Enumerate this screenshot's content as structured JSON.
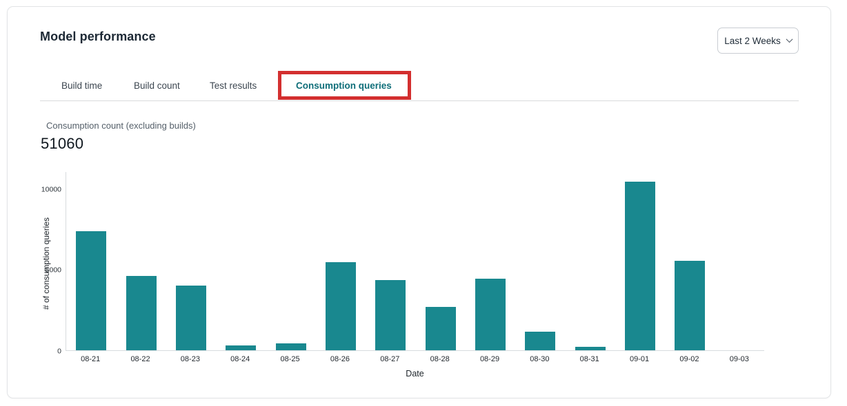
{
  "card": {
    "title": "Model performance",
    "range_selector": {
      "label": "Last 2 Weeks"
    }
  },
  "tabs": [
    {
      "label": "Build time",
      "active": false
    },
    {
      "label": "Build count",
      "active": false
    },
    {
      "label": "Test results",
      "active": false
    },
    {
      "label": "Consumption queries",
      "active": true,
      "annotated": true
    }
  ],
  "metric": {
    "label": "Consumption count (excluding builds)",
    "value": "51060"
  },
  "chart_data": {
    "type": "bar",
    "title": "",
    "xlabel": "Date",
    "ylabel": "# of consumption queries",
    "categories": [
      "08-21",
      "08-22",
      "08-23",
      "08-24",
      "08-25",
      "08-26",
      "08-27",
      "08-28",
      "08-29",
      "08-30",
      "08-31",
      "09-01",
      "09-02",
      "09-03"
    ],
    "values": [
      7400,
      4600,
      4010,
      310,
      430,
      5480,
      4350,
      2700,
      4450,
      1150,
      200,
      10450,
      5530,
      0
    ],
    "yticks": [
      0,
      5000,
      10000
    ],
    "ylim": [
      0,
      11100
    ],
    "grid": false,
    "legend": "none",
    "bar_color": "#19888F"
  },
  "colors": {
    "accent_teal": "#19888F",
    "active_tab_teal": "#0F6E79",
    "annotation_red": "#D32F2F",
    "title_text": "#1D2935",
    "card_border": "#E2E4E6"
  }
}
